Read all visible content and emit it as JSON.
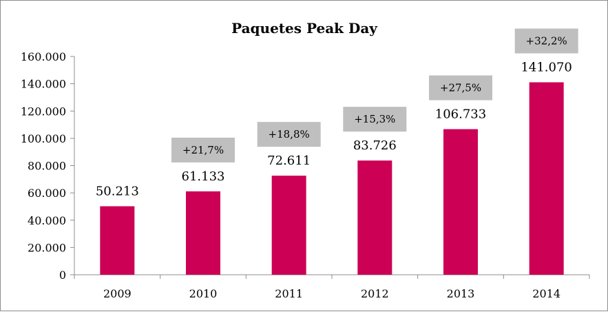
{
  "chart_data": {
    "type": "bar",
    "title": "Paquetes Peak Day",
    "categories": [
      "2009",
      "2010",
      "2011",
      "2012",
      "2013",
      "2014"
    ],
    "values": [
      50213,
      61133,
      72611,
      83726,
      106733,
      141070
    ],
    "value_labels": [
      "50.213",
      "61.133",
      "72.611",
      "83.726",
      "106.733",
      "141.070"
    ],
    "growth_labels": [
      "",
      "+21,7%",
      "+18,8%",
      "+15,3%",
      "+27,5%",
      "+32,2%"
    ],
    "y_ticks": [
      "0",
      "20.000",
      "40.000",
      "60.000",
      "80.000",
      "100.000",
      "120.000",
      "140.000",
      "160.000"
    ],
    "ylim": [
      0,
      160000
    ],
    "xlabel": "",
    "ylabel": "",
    "grid": false,
    "legend": "none",
    "colors": {
      "bar": "#cc0055",
      "growth_box": "#bfbfbf",
      "axis": "#8c8c8c"
    }
  }
}
